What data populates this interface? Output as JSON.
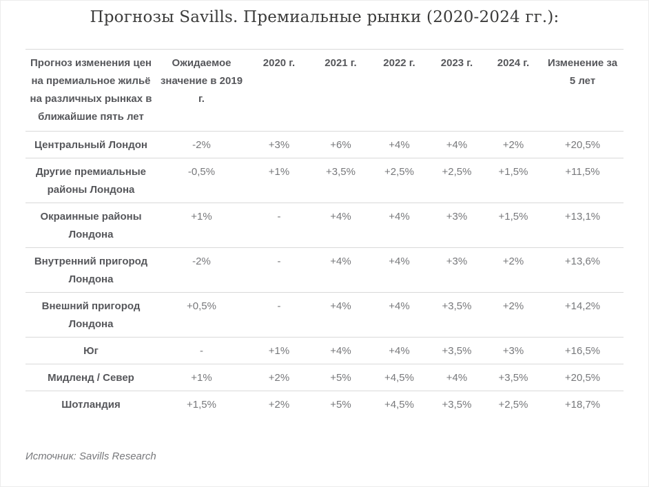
{
  "page": {
    "title": "Прогнозы Savills. Премиальные рынки (2020-2024 гг.):",
    "source_note": "Источник: Savills Research"
  },
  "colors": {
    "title_text": "#3b3b3a",
    "header_text": "#56575b",
    "value_text": "#77787b",
    "row_border": "#d9d9d9",
    "page_border": "#ececec"
  },
  "chart_data": {
    "type": "table",
    "title": "Прогнозы Savills. Премиальные рынки (2020-2024 гг.):",
    "source": "Источник: Savills Research",
    "columns": [
      "Прогноз изменения цен на премиальное жильё на различных рынках в ближайшие пять лет",
      "Ожидаемое значение в 2019 г.",
      "2020 г.",
      "2021 г.",
      "2022 г.",
      "2023 г.",
      "2024 г.",
      "Изменение за 5 лет"
    ],
    "rows": [
      {
        "label": "Центральный Лондон",
        "values": [
          "-2%",
          "+3%",
          "+6%",
          "+4%",
          "+4%",
          "+2%",
          "+20,5%"
        ]
      },
      {
        "label": "Другие премиальные районы Лондона",
        "values": [
          "-0,5%",
          "+1%",
          "+3,5%",
          "+2,5%",
          "+2,5%",
          "+1,5%",
          "+11,5%"
        ]
      },
      {
        "label": "Окраинные районы Лондона",
        "values": [
          "+1%",
          "-",
          "+4%",
          "+4%",
          "+3%",
          "+1,5%",
          "+13,1%"
        ]
      },
      {
        "label": "Внутренний пригород Лондона",
        "values": [
          "-2%",
          "-",
          "+4%",
          "+4%",
          "+3%",
          "+2%",
          "+13,6%"
        ]
      },
      {
        "label": "Внешний пригород Лондона",
        "values": [
          "+0,5%",
          "-",
          "+4%",
          "+4%",
          "+3,5%",
          "+2%",
          "+14,2%"
        ]
      },
      {
        "label": "Юг",
        "values": [
          "-",
          "+1%",
          "+4%",
          "+4%",
          "+3,5%",
          "+3%",
          "+16,5%"
        ]
      },
      {
        "label": "Мидленд / Север",
        "values": [
          "+1%",
          "+2%",
          "+5%",
          "+4,5%",
          "+4%",
          "+3,5%",
          "+20,5%"
        ]
      },
      {
        "label": "Шотландия",
        "values": [
          "+1,5%",
          "+2%",
          "+5%",
          "+4,5%",
          "+3,5%",
          "+2,5%",
          "+18,7%"
        ]
      }
    ]
  }
}
